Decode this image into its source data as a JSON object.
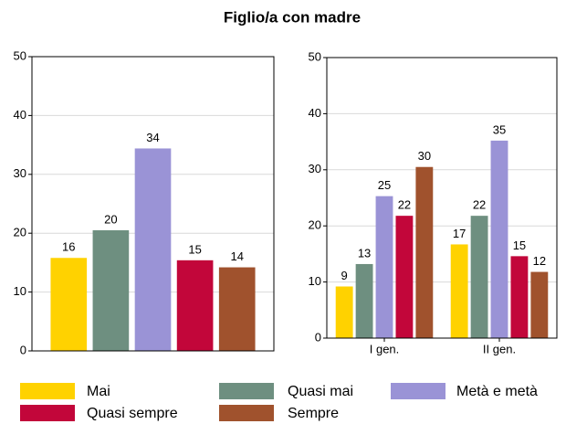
{
  "title": "Figlio/a con madre",
  "chart_data": [
    {
      "type": "bar",
      "categories": [
        null
      ],
      "ylim": [
        0,
        50
      ],
      "yticks": [
        0,
        10,
        20,
        30,
        40,
        50
      ],
      "grid": true,
      "series": [
        {
          "name": "Mai",
          "color": "#ffd200",
          "values": [
            15.8
          ],
          "value_labels": [
            "16"
          ]
        },
        {
          "name": "Quasi mai",
          "color": "#6e8f80",
          "values": [
            20.5
          ],
          "value_labels": [
            "20"
          ]
        },
        {
          "name": "Metà e metà",
          "color": "#9a93d6",
          "values": [
            34.4
          ],
          "value_labels": [
            "34"
          ]
        },
        {
          "name": "Quasi sempre",
          "color": "#c2063a",
          "values": [
            15.4
          ],
          "value_labels": [
            "15"
          ]
        },
        {
          "name": "Sempre",
          "color": "#a0522d",
          "values": [
            14.2
          ],
          "value_labels": [
            "14"
          ]
        }
      ]
    },
    {
      "type": "bar",
      "categories": [
        "I gen.",
        "II gen."
      ],
      "ylim": [
        0,
        50
      ],
      "yticks": [
        0,
        10,
        20,
        30,
        40,
        50
      ],
      "grid": true,
      "series": [
        {
          "name": "Mai",
          "color": "#ffd200",
          "values": [
            9.2,
            16.7
          ],
          "value_labels": [
            "9",
            "17"
          ]
        },
        {
          "name": "Quasi mai",
          "color": "#6e8f80",
          "values": [
            13.2,
            21.8
          ],
          "value_labels": [
            "13",
            "22"
          ]
        },
        {
          "name": "Metà e metà",
          "color": "#9a93d6",
          "values": [
            25.3,
            35.2
          ],
          "value_labels": [
            "25",
            "35"
          ]
        },
        {
          "name": "Quasi sempre",
          "color": "#c2063a",
          "values": [
            21.8,
            14.6
          ],
          "value_labels": [
            "22",
            "15"
          ]
        },
        {
          "name": "Sempre",
          "color": "#a0522d",
          "values": [
            30.5,
            11.8
          ],
          "value_labels": [
            "30",
            "12"
          ]
        }
      ]
    }
  ]
}
